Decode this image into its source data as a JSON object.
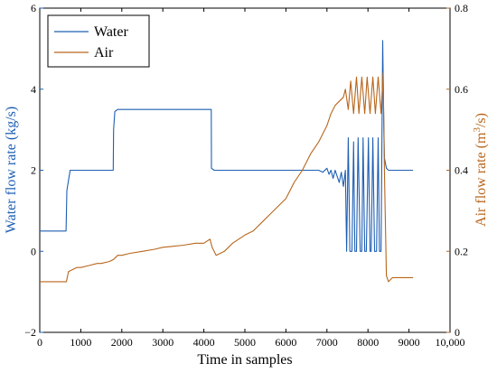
{
  "chart_data": {
    "type": "line",
    "xlabel": "Time in samples",
    "ylabel_left": "Water flow rate (kg/s)",
    "ylabel_right_parts": [
      "Air flow rate (m",
      "3",
      "/s)"
    ],
    "xlim": [
      0,
      10000
    ],
    "ylim_left": [
      -2,
      6
    ],
    "ylim_right": [
      0,
      0.8
    ],
    "x_ticks": [
      "0",
      "1000",
      "2000",
      "3000",
      "4000",
      "5000",
      "6000",
      "7000",
      "8000",
      "9000",
      "10,000"
    ],
    "y_left_ticks": [
      "−2",
      "0",
      "2",
      "4",
      "6"
    ],
    "y_right_ticks": [
      "0",
      "0.2",
      "0.4",
      "0.6",
      "0.8"
    ],
    "grid": false,
    "legend": "top-left",
    "colors": {
      "water": "#1f5fb4",
      "air": "#b8661c"
    },
    "series": [
      {
        "name": "Water",
        "axis": "left",
        "x": [
          0,
          640,
          660,
          740,
          1790,
          1800,
          1830,
          1900,
          2500,
          3000,
          3500,
          4180,
          4185,
          4250,
          5000,
          5500,
          6000,
          6500,
          6800,
          6900,
          7000,
          7050,
          7100,
          7150,
          7200,
          7250,
          7300,
          7350,
          7400,
          7450,
          7480,
          7520,
          7560,
          7610,
          7650,
          7680,
          7720,
          7760,
          7810,
          7850,
          7880,
          7920,
          7960,
          8010,
          8050,
          8080,
          8120,
          8160,
          8210,
          8250,
          8280,
          8320,
          8360,
          8380,
          8400,
          8450,
          8500,
          8600,
          9000,
          9100
        ],
        "values": [
          0.5,
          0.5,
          1.5,
          2.0,
          2.0,
          3.0,
          3.45,
          3.5,
          3.5,
          3.5,
          3.5,
          3.5,
          2.05,
          2.0,
          2.0,
          2.0,
          2.0,
          2.0,
          2.0,
          1.95,
          2.05,
          1.9,
          2.0,
          1.8,
          2.0,
          1.85,
          1.7,
          1.95,
          1.6,
          2.0,
          0.0,
          2.8,
          0.0,
          0.0,
          2.7,
          0.0,
          0.0,
          2.8,
          0.0,
          0.0,
          2.8,
          0.0,
          0.0,
          2.8,
          0.0,
          0.0,
          2.8,
          0.0,
          0.0,
          2.8,
          0.0,
          0.0,
          5.2,
          3.5,
          2.3,
          2.05,
          2.0,
          2.0,
          2.0,
          2.0
        ]
      },
      {
        "name": "Air",
        "axis": "right",
        "x": [
          0,
          400,
          650,
          700,
          900,
          1000,
          1200,
          1400,
          1500,
          1700,
          1800,
          1900,
          2000,
          2200,
          2500,
          2800,
          3000,
          3200,
          3500,
          3800,
          4000,
          4150,
          4200,
          4300,
          4500,
          4700,
          5000,
          5200,
          5400,
          5600,
          5800,
          6000,
          6200,
          6400,
          6600,
          6800,
          7000,
          7100,
          7200,
          7300,
          7400,
          7450,
          7520,
          7580,
          7650,
          7720,
          7780,
          7850,
          7920,
          7980,
          8050,
          8120,
          8180,
          8250,
          8320,
          8370,
          8400,
          8450,
          8500,
          8600,
          9000,
          9100
        ],
        "values": [
          0.125,
          0.125,
          0.125,
          0.15,
          0.16,
          0.16,
          0.165,
          0.17,
          0.17,
          0.175,
          0.18,
          0.19,
          0.19,
          0.195,
          0.2,
          0.205,
          0.21,
          0.212,
          0.215,
          0.22,
          0.22,
          0.23,
          0.21,
          0.19,
          0.2,
          0.22,
          0.24,
          0.25,
          0.27,
          0.29,
          0.31,
          0.33,
          0.37,
          0.4,
          0.44,
          0.47,
          0.51,
          0.54,
          0.56,
          0.57,
          0.58,
          0.6,
          0.55,
          0.62,
          0.54,
          0.63,
          0.54,
          0.63,
          0.54,
          0.63,
          0.54,
          0.63,
          0.54,
          0.63,
          0.54,
          0.64,
          0.4,
          0.14,
          0.125,
          0.135,
          0.135,
          0.135
        ]
      }
    ]
  }
}
